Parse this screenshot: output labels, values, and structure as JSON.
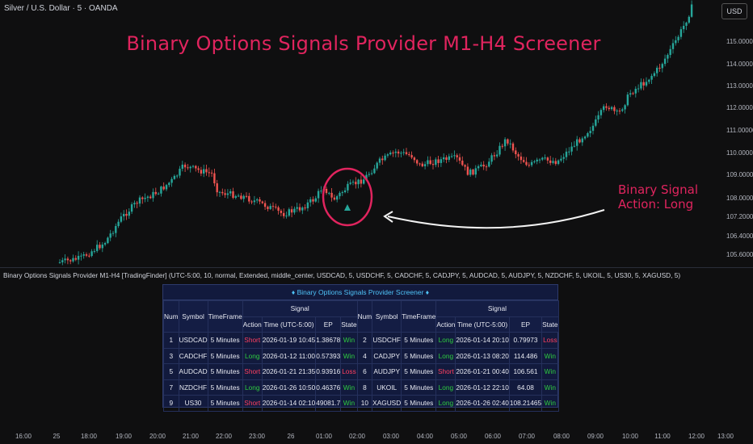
{
  "header": {
    "symbol_line": "Silver / U.S. Dollar · 5 · OANDA",
    "currency": "USD"
  },
  "overlay": {
    "title": "Binary Options Signals Provider M1-H4 Screener",
    "annotation_line1": "Binary Signal",
    "annotation_line2": "Action: Long"
  },
  "price_axis": [
    "115.00000",
    "114.00000",
    "113.00000",
    "112.00000",
    "111.00000",
    "110.00000",
    "109.00000",
    "108.00000",
    "107.20000",
    "106.40000",
    "105.60000"
  ],
  "indicator_label": "Binary Options Signals Provider M1-H4 [TradingFinder] (UTC-5:00, 10, normal, Extended, middle_center, USDCAD, 5, USDCHF, 5, CADCHF, 5, CADJPY, 5, AUDCAD, 5, AUDJPY, 5, NZDCHF, 5, UKOIL, 5, US30, 5, XAGUSD, 5)",
  "screener": {
    "title": "♦ Binary Options Signals Provider Screener ♦",
    "col_num": "Num",
    "col_symbol": "Symbol",
    "col_timeframe": "TimeFrame",
    "col_signal": "Signal",
    "col_action": "Action",
    "col_time": "Time (UTC-5:00)",
    "col_ep": "EP",
    "col_state": "State",
    "rows": [
      {
        "n1": "1",
        "s1": "USDCAD",
        "tf1": "5 Minutes",
        "a1": "Short",
        "t1": "2026-01-19 10:45",
        "ep1": "1.38678",
        "st1": "Win",
        "n2": "2",
        "s2": "USDCHF",
        "tf2": "5 Minutes",
        "a2": "Long",
        "t2": "2026-01-14 20:10",
        "ep2": "0.79973",
        "st2": "Loss"
      },
      {
        "n1": "3",
        "s1": "CADCHF",
        "tf1": "5 Minutes",
        "a1": "Long",
        "t1": "2026-01-12 11:00",
        "ep1": "0.57393",
        "st1": "Win",
        "n2": "4",
        "s2": "CADJPY",
        "tf2": "5 Minutes",
        "a2": "Long",
        "t2": "2026-01-13 08:20",
        "ep2": "114.486",
        "st2": "Win"
      },
      {
        "n1": "5",
        "s1": "AUDCAD",
        "tf1": "5 Minutes",
        "a1": "Short",
        "t1": "2026-01-21 21:35",
        "ep1": "0.93916",
        "st1": "Loss",
        "n2": "6",
        "s2": "AUDJPY",
        "tf2": "5 Minutes",
        "a2": "Short",
        "t2": "2026-01-21 00:40",
        "ep2": "106.561",
        "st2": "Win"
      },
      {
        "n1": "7",
        "s1": "NZDCHF",
        "tf1": "5 Minutes",
        "a1": "Long",
        "t1": "2026-01-26 10:50",
        "ep1": "0.46376",
        "st1": "Win",
        "n2": "8",
        "s2": "UKOIL",
        "tf2": "5 Minutes",
        "a2": "Long",
        "t2": "2026-01-12 22:10",
        "ep2": "64.08",
        "st2": "Win"
      },
      {
        "n1": "9",
        "s1": "US30",
        "tf1": "5 Minutes",
        "a1": "Short",
        "t1": "2026-01-14 02:10",
        "ep1": "49081.7",
        "st1": "Win",
        "n2": "10",
        "s2": "XAGUSD",
        "tf2": "5 Minutes",
        "a2": "Long",
        "t2": "2026-01-26 02:40",
        "ep2": "108.21465",
        "st2": "Win"
      }
    ]
  },
  "time_axis": [
    "16:00",
    "25",
    "18:00",
    "19:00",
    "20:00",
    "21:00",
    "22:00",
    "23:00",
    "26",
    "01:00",
    "02:00",
    "03:00",
    "04:00",
    "05:00",
    "06:00",
    "07:00",
    "08:00",
    "09:00",
    "10:00",
    "11:00",
    "12:00",
    "13:00"
  ],
  "colors": {
    "up": "#26a69a",
    "down": "#ef5350",
    "accent": "#e0245e",
    "signal_marker": "#26a69a"
  }
}
